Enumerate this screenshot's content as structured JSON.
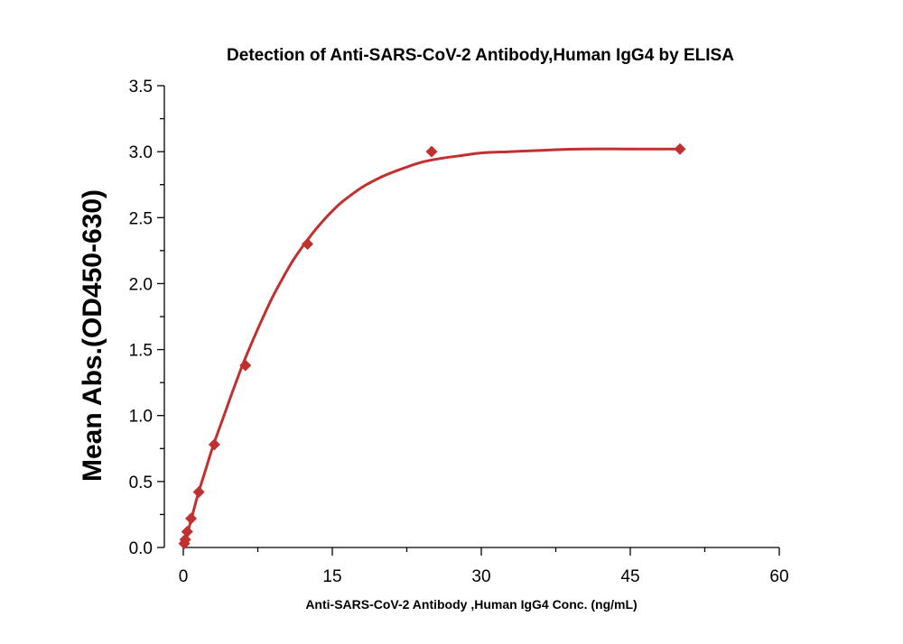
{
  "chart_data": {
    "type": "scatter",
    "title": "Detection of Anti-SARS-CoV-2 Antibody,Human IgG4 by ELISA",
    "xlabel": "Anti-SARS-CoV-2 Antibody ,Human IgG4 Conc. (ng/mL)",
    "ylabel": "Mean Abs.(OD450-630)",
    "xlim": [
      0,
      60
    ],
    "ylim": [
      0,
      3.5
    ],
    "xticks": [
      0,
      15,
      30,
      45,
      60
    ],
    "xtick_labels": [
      "0",
      "15",
      "30",
      "45",
      "60"
    ],
    "yticks": [
      0,
      0.5,
      1.0,
      1.5,
      2.0,
      2.5,
      3.0,
      3.5
    ],
    "ytick_labels": [
      "0.0",
      "0.5",
      "1.0",
      "1.5",
      "2.0",
      "2.5",
      "3.0",
      "3.5"
    ],
    "grid": false,
    "color": "#c0302e",
    "series": [
      {
        "marker": "diamond",
        "x": [
          0.098,
          0.195,
          0.39,
          0.78,
          1.56,
          3.125,
          6.25,
          12.5,
          25,
          50
        ],
        "y": [
          0.03,
          0.06,
          0.12,
          0.22,
          0.42,
          0.78,
          1.38,
          2.3,
          3.0,
          3.02
        ]
      }
    ],
    "fit_curve": {
      "style": "smooth",
      "x": [
        0,
        0.5,
        1,
        1.5,
        2,
        3,
        4,
        5,
        6,
        7,
        8,
        9,
        10,
        11,
        12,
        13,
        14,
        15,
        16,
        18,
        20,
        22,
        24,
        26,
        28,
        30,
        33,
        36,
        40,
        45,
        50
      ],
      "y": [
        0.0,
        0.13,
        0.27,
        0.41,
        0.53,
        0.77,
        0.98,
        1.19,
        1.39,
        1.57,
        1.74,
        1.9,
        2.04,
        2.17,
        2.28,
        2.38,
        2.47,
        2.55,
        2.62,
        2.73,
        2.81,
        2.87,
        2.92,
        2.95,
        2.97,
        2.99,
        3.0,
        3.01,
        3.02,
        3.02,
        3.02
      ]
    }
  }
}
